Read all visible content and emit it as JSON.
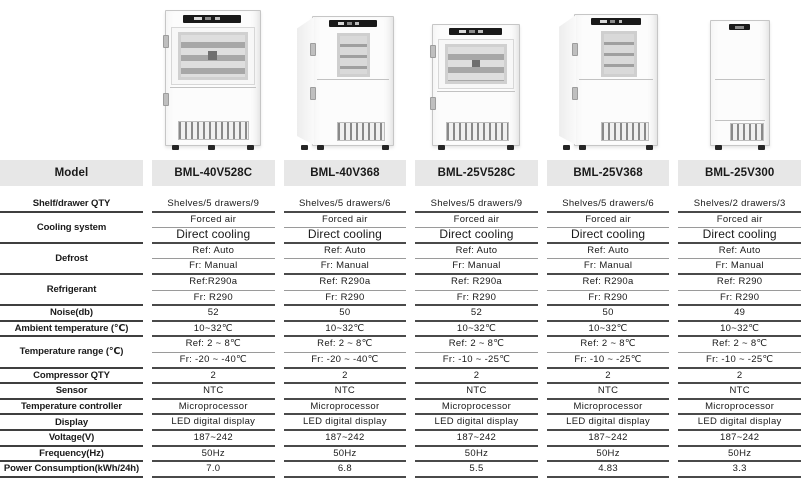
{
  "colors": {
    "header_bg": "#e7e7e7",
    "group_line": "#4a4a4a",
    "sub_line": "#9a9a9a",
    "text": "#1a1a1a",
    "panel": "#191919"
  },
  "products": [
    {
      "model": "BML-40V528C",
      "figure": "upright-combo-glass-door-front"
    },
    {
      "model": "BML-40V368",
      "figure": "upright-combo-small-window-angled"
    },
    {
      "model": "BML-25V528C",
      "figure": "upright-combo-glass-door-front"
    },
    {
      "model": "BML-25V368",
      "figure": "upright-combo-small-window-angled"
    },
    {
      "model": "BML-25V300",
      "figure": "upright-combo-solid-doors-front"
    }
  ],
  "table": {
    "header": {
      "model_label": "Model",
      "models": [
        "BML-40V528C",
        "BML-40V368",
        "BML-25V528C",
        "BML-25V368",
        "BML-25V300"
      ]
    },
    "groups": [
      {
        "label": "Shelf/drawer QTY",
        "rows": [
          {
            "values": [
              "Shelves/5 drawers/9",
              "Shelves/5 drawers/6",
              "Shelves/5 drawers/9",
              "Shelves/5 drawers/6",
              "Shelves/2 drawers/3"
            ]
          }
        ]
      },
      {
        "label": "Cooling system",
        "rows": [
          {
            "values": [
              "Forced air",
              "Forced air",
              "Forced air",
              "Forced air",
              "Forced air"
            ]
          },
          {
            "values": [
              "Direct cooling",
              "Direct cooling",
              "Direct cooling",
              "Direct cooling",
              "Direct cooling"
            ],
            "emphasis": true
          }
        ]
      },
      {
        "label": "Defrost",
        "rows": [
          {
            "values": [
              "Ref: Auto",
              "Ref: Auto",
              "Ref: Auto",
              "Ref: Auto",
              "Ref: Auto"
            ]
          },
          {
            "values": [
              "Fr: Manual",
              "Fr: Manual",
              "Fr: Manual",
              "Fr: Manual",
              "Fr: Manual"
            ]
          }
        ]
      },
      {
        "label": "Refrigerant",
        "rows": [
          {
            "values": [
              "Ref:R290a",
              "Ref: R290a",
              "Ref: R290a",
              "Ref: R290a",
              "Ref: R290"
            ]
          },
          {
            "values": [
              "Fr: R290",
              "Fr: R290",
              "Fr: R290",
              "Fr: R290",
              "Fr: R290"
            ]
          }
        ]
      },
      {
        "label": "Noise(db)",
        "rows": [
          {
            "values": [
              "52",
              "50",
              "52",
              "50",
              "49"
            ]
          }
        ]
      },
      {
        "label": "Ambient temperature (℃)",
        "rows": [
          {
            "values": [
              "10~32℃",
              "10~32℃",
              "10~32℃",
              "10~32℃",
              "10~32℃"
            ]
          }
        ]
      },
      {
        "label": "Temperature range (℃)",
        "rows": [
          {
            "values": [
              "Ref: 2 ~ 8℃",
              "Ref: 2 ~ 8℃",
              "Ref: 2 ~ 8℃",
              "Ref: 2 ~ 8℃",
              "Ref: 2 ~ 8℃"
            ]
          },
          {
            "values": [
              "Fr: -20 ~ -40℃",
              "Fr: -20 ~ -40℃",
              "Fr: -10 ~ -25℃",
              "Fr: -10 ~ -25℃",
              "Fr: -10 ~ -25℃"
            ]
          }
        ]
      },
      {
        "label": "Compressor QTY",
        "rows": [
          {
            "values": [
              "2",
              "2",
              "2",
              "2",
              "2"
            ]
          }
        ]
      },
      {
        "label": "Sensor",
        "rows": [
          {
            "values": [
              "NTC",
              "NTC",
              "NTC",
              "NTC",
              "NTC"
            ]
          }
        ]
      },
      {
        "label": "Temperature controller",
        "rows": [
          {
            "values": [
              "Microprocessor",
              "Microprocessor",
              "Microprocessor",
              "Microprocessor",
              "Microprocessor"
            ]
          }
        ]
      },
      {
        "label": "Display",
        "rows": [
          {
            "values": [
              "LED digital display",
              "LED digital display",
              "LED digital display",
              "LED digital display",
              "LED digital display"
            ]
          }
        ]
      },
      {
        "label": "Voltage(V)",
        "rows": [
          {
            "values": [
              "187~242",
              "187~242",
              "187~242",
              "187~242",
              "187~242"
            ]
          }
        ]
      },
      {
        "label": "Frequency(Hz)",
        "rows": [
          {
            "values": [
              "50Hz",
              "50Hz",
              "50Hz",
              "50Hz",
              "50Hz"
            ]
          }
        ]
      },
      {
        "label": "Power Consumption(kWh/24h)",
        "rows": [
          {
            "values": [
              "7.0",
              "6.8",
              "5.5",
              "4.83",
              "3.3"
            ]
          }
        ]
      }
    ]
  }
}
